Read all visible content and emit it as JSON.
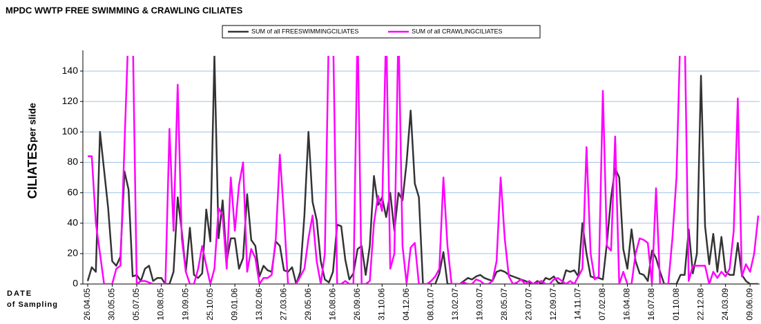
{
  "chart_data": {
    "type": "line",
    "title": "MPDC WWTP FREE SWIMMING & CRAWLING CILIATES",
    "y_label": "CILIATES",
    "y_label_unit": "per slide",
    "x_label": "DATE",
    "x_label_sub": "of Sampling",
    "ylim": [
      0,
      150
    ],
    "yticks": [
      0,
      20,
      40,
      60,
      80,
      100,
      120,
      140
    ],
    "grid": true,
    "legend": "top",
    "categories": [
      "26.04.05",
      null,
      null,
      null,
      null,
      null,
      "30.05.05",
      null,
      null,
      null,
      null,
      null,
      "05.07.05",
      null,
      null,
      null,
      null,
      null,
      "10.08.05",
      null,
      null,
      null,
      null,
      null,
      "19.09.05",
      null,
      null,
      null,
      null,
      null,
      "25.10.05",
      null,
      null,
      null,
      null,
      null,
      "09.01.06",
      null,
      null,
      null,
      null,
      null,
      "13.02.06",
      null,
      null,
      null,
      null,
      null,
      "27.03.06",
      null,
      null,
      null,
      null,
      null,
      "29.05.06",
      null,
      null,
      null,
      null,
      null,
      "16.08.06",
      null,
      null,
      null,
      null,
      null,
      "26.09.06",
      null,
      null,
      null,
      null,
      null,
      "31.10.06",
      null,
      null,
      null,
      null,
      null,
      "04.12.06",
      null,
      null,
      null,
      null,
      null,
      "08.01.07",
      null,
      null,
      null,
      null,
      null,
      "13.02.07",
      null,
      null,
      null,
      null,
      null,
      "19.03.07",
      null,
      null,
      null,
      null,
      null,
      "28.05.07",
      null,
      null,
      null,
      null,
      null,
      "23.07.07",
      null,
      null,
      null,
      null,
      null,
      "12.09.07",
      null,
      null,
      null,
      null,
      null,
      "14.11.07",
      null,
      null,
      null,
      null,
      null,
      "07.02.08",
      null,
      null,
      null,
      null,
      null,
      "16.04.08",
      null,
      null,
      null,
      null,
      null,
      "16.07.08",
      null,
      null,
      null,
      null,
      null,
      "01.10.08",
      null,
      null,
      null,
      null,
      null,
      "22.12.08",
      null,
      null,
      null,
      null,
      null,
      "24.03.09",
      null,
      null,
      null,
      null,
      null,
      "09.06.09",
      null,
      null
    ],
    "series": [
      {
        "name": "SUM of all FREESWIMMINGCILIATES",
        "color": "#333333",
        "values": [
          2,
          11,
          8,
          100,
          75,
          50,
          15,
          12,
          18,
          74,
          62,
          5,
          6,
          2,
          10,
          12,
          2,
          4,
          4,
          0,
          0,
          8,
          57,
          35,
          8,
          37,
          6,
          4,
          7,
          49,
          28,
          150,
          30,
          55,
          15,
          30,
          30,
          10,
          17,
          59,
          29,
          25,
          5,
          12,
          9,
          8,
          28,
          25,
          9,
          8,
          11,
          0,
          8,
          45,
          100,
          54,
          42,
          15,
          3,
          1,
          8,
          39,
          38,
          16,
          3,
          7,
          23,
          25,
          6,
          25,
          71,
          52,
          57,
          44,
          60,
          35,
          60,
          55,
          80,
          114,
          66,
          57,
          0,
          0,
          0,
          0,
          7,
          21,
          0,
          0,
          0,
          0,
          2,
          4,
          3,
          5,
          6,
          4,
          3,
          2,
          8,
          9,
          8,
          6,
          5,
          4,
          3,
          2,
          1,
          0,
          2,
          0,
          4,
          3,
          5,
          1,
          0,
          9,
          8,
          9,
          5,
          40,
          20,
          5,
          4,
          4,
          3,
          27,
          57,
          76,
          70,
          23,
          10,
          36,
          15,
          7,
          6,
          2,
          22,
          17,
          8,
          0,
          0,
          0,
          0,
          6,
          6,
          36,
          7,
          20,
          137,
          38,
          13,
          33,
          8,
          31,
          8,
          6,
          6,
          27,
          6,
          2,
          0,
          0,
          0
        ]
      },
      {
        "name": "SUM of all CRAWLINGCILIATES",
        "color": "#ff00ff",
        "values": [
          84,
          84,
          40,
          20,
          0,
          0,
          0,
          10,
          12,
          92,
          170,
          170,
          0,
          2,
          2,
          1,
          0,
          0,
          0,
          0,
          102,
          35,
          131,
          30,
          8,
          0,
          0,
          10,
          25,
          12,
          0,
          10,
          50,
          45,
          10,
          70,
          35,
          65,
          80,
          8,
          23,
          17,
          0,
          4,
          4,
          6,
          30,
          85,
          45,
          0,
          0,
          0,
          5,
          10,
          30,
          45,
          15,
          0,
          20,
          170,
          170,
          0,
          0,
          2,
          0,
          0,
          170,
          0,
          0,
          2,
          40,
          58,
          48,
          170,
          10,
          20,
          170,
          25,
          0,
          24,
          27,
          0,
          0,
          0,
          2,
          5,
          10,
          70,
          25,
          0,
          0,
          0,
          1,
          0,
          0,
          3,
          2,
          0,
          0,
          2,
          15,
          70,
          30,
          5,
          0,
          1,
          3,
          0,
          2,
          0,
          1,
          2,
          0,
          0,
          3,
          4,
          2,
          0,
          2,
          0,
          5,
          10,
          90,
          20,
          3,
          5,
          127,
          25,
          22,
          97,
          0,
          8,
          0,
          0,
          20,
          30,
          29,
          27,
          0,
          63,
          0,
          0,
          0,
          30,
          70,
          170,
          170,
          2,
          12,
          12,
          12,
          12,
          0,
          8,
          4,
          8,
          5,
          10,
          35,
          122,
          5,
          13,
          8,
          20,
          45
        ]
      }
    ]
  }
}
